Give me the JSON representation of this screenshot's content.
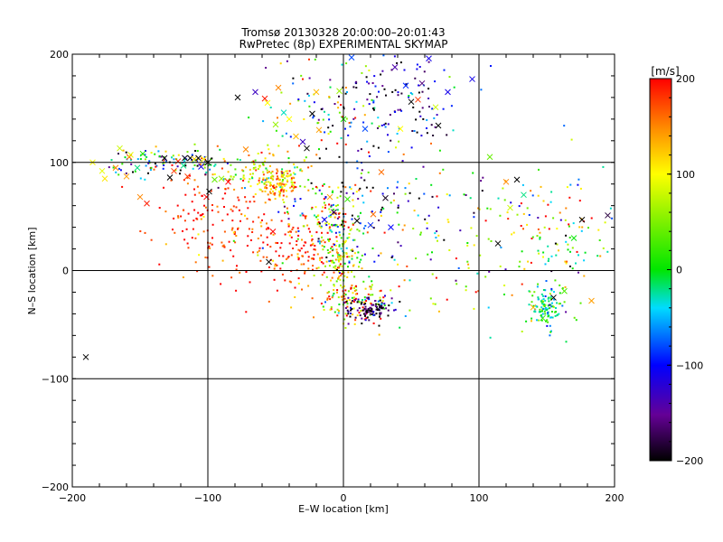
{
  "chart_data": {
    "type": "scatter",
    "title": "Tromsø 20130328 20:00:00–20:01:43",
    "subtitle": "RwPretec (8p) EXPERIMENTAL SKYMAP",
    "xlabel": "E–W location [km]",
    "ylabel": "N–S location [km]",
    "xlim": [
      -200,
      200
    ],
    "ylim": [
      -200,
      200
    ],
    "xticks": [
      -200,
      -100,
      0,
      100,
      200
    ],
    "yticks": [
      -200,
      -100,
      0,
      100,
      200
    ],
    "grid": true,
    "colorbar": {
      "label": "[m/s]",
      "range": [
        -200,
        200
      ],
      "ticks": [
        -200,
        -100,
        0,
        100,
        200
      ],
      "colormap": "black-purple-blue-cyan-green-yellow-orange-red"
    },
    "point_clusters": [
      {
        "center": [
          -48,
          80
        ],
        "spread": [
          8,
          8
        ],
        "velocity": 130,
        "velocity_spread": 40
      },
      {
        "center": [
          -60,
          92
        ],
        "spread": [
          20,
          10
        ],
        "velocity": 80,
        "velocity_spread": 60
      },
      {
        "center": [
          -100,
          45
        ],
        "spread": [
          22,
          22
        ],
        "velocity": 190,
        "velocity_spread": 25
      },
      {
        "center": [
          -55,
          40
        ],
        "spread": [
          25,
          25
        ],
        "velocity": 170,
        "velocity_spread": 40
      },
      {
        "center": [
          -30,
          10
        ],
        "spread": [
          20,
          25
        ],
        "velocity": 185,
        "velocity_spread": 30
      },
      {
        "center": [
          -2,
          10
        ],
        "spread": [
          8,
          15
        ],
        "velocity": 60,
        "velocity_spread": 60
      },
      {
        "center": [
          10,
          -30
        ],
        "spread": [
          15,
          12
        ],
        "velocity": 140,
        "velocity_spread": 80
      },
      {
        "center": [
          20,
          -35
        ],
        "spread": [
          8,
          6
        ],
        "velocity": -170,
        "velocity_spread": 40
      },
      {
        "center": [
          -10,
          50
        ],
        "spread": [
          15,
          15
        ],
        "velocity": 20,
        "velocity_spread": 120
      },
      {
        "center": [
          20,
          60
        ],
        "spread": [
          30,
          30
        ],
        "velocity": -60,
        "velocity_spread": 140
      },
      {
        "center": [
          -10,
          150
        ],
        "spread": [
          20,
          35
        ],
        "velocity": -20,
        "velocity_spread": 120
      },
      {
        "center": [
          40,
          160
        ],
        "spread": [
          25,
          25
        ],
        "velocity": -130,
        "velocity_spread": 70
      },
      {
        "center": [
          -130,
          100
        ],
        "spread": [
          25,
          6
        ],
        "velocity": -20,
        "velocity_spread": 130
      },
      {
        "center": [
          90,
          30
        ],
        "spread": [
          40,
          40
        ],
        "velocity": 30,
        "velocity_spread": 120
      },
      {
        "center": [
          150,
          -35
        ],
        "spread": [
          6,
          10
        ],
        "velocity": -20,
        "velocity_spread": 40
      },
      {
        "center": [
          160,
          30
        ],
        "spread": [
          20,
          30
        ],
        "velocity": 60,
        "velocity_spread": 120
      }
    ],
    "cross_markers": [
      [
        -190,
        -80,
        -210
      ],
      [
        -185,
        100,
        100
      ],
      [
        -178,
        92,
        90
      ],
      [
        -176,
        85,
        110
      ],
      [
        -168,
        95,
        150
      ],
      [
        -165,
        113,
        80
      ],
      [
        -160,
        87,
        140
      ],
      [
        -158,
        105,
        170
      ],
      [
        -157,
        107,
        90
      ],
      [
        -152,
        95,
        -20
      ],
      [
        -150,
        68,
        150
      ],
      [
        -148,
        108,
        10
      ],
      [
        -145,
        62,
        190
      ],
      [
        -132,
        104,
        -190
      ],
      [
        -128,
        86,
        -200
      ],
      [
        -125,
        92,
        180
      ],
      [
        -122,
        101,
        190
      ],
      [
        -118,
        97,
        -20
      ],
      [
        -117,
        104,
        -190
      ],
      [
        -115,
        87,
        180
      ],
      [
        -113,
        104,
        -200
      ],
      [
        -110,
        103,
        120
      ],
      [
        -107,
        104,
        -200
      ],
      [
        -105,
        96,
        -110
      ],
      [
        -103,
        103,
        100
      ],
      [
        -101,
        68,
        200
      ],
      [
        -100,
        100,
        -200
      ],
      [
        -99,
        73,
        -200
      ],
      [
        -95,
        84,
        40
      ],
      [
        -90,
        85,
        60
      ],
      [
        -85,
        82,
        200
      ],
      [
        -78,
        160,
        -200
      ],
      [
        -72,
        112,
        150
      ],
      [
        -65,
        165,
        -130
      ],
      [
        -58,
        159,
        190
      ],
      [
        -56,
        155,
        100
      ],
      [
        -55,
        8,
        -200
      ],
      [
        -52,
        36,
        200
      ],
      [
        -50,
        135,
        60
      ],
      [
        -48,
        169,
        150
      ],
      [
        -44,
        146,
        -30
      ],
      [
        -40,
        140,
        100
      ],
      [
        -35,
        124,
        130
      ],
      [
        -30,
        119,
        -130
      ],
      [
        -27,
        113,
        -200
      ],
      [
        -23,
        145,
        -200
      ],
      [
        -20,
        165,
        130
      ],
      [
        -18,
        130,
        140
      ],
      [
        -14,
        47,
        -110
      ],
      [
        -10,
        68,
        140
      ],
      [
        -7,
        54,
        -180
      ],
      [
        -3,
        166,
        60
      ],
      [
        0,
        140,
        10
      ],
      [
        3,
        66,
        20
      ],
      [
        6,
        197,
        -80
      ],
      [
        10,
        46,
        -200
      ],
      [
        16,
        131,
        -80
      ],
      [
        20,
        42,
        -90
      ],
      [
        22,
        52,
        160
      ],
      [
        28,
        91,
        160
      ],
      [
        31,
        67,
        -190
      ],
      [
        35,
        40,
        -100
      ],
      [
        38,
        188,
        -140
      ],
      [
        42,
        131,
        100
      ],
      [
        46,
        171,
        -90
      ],
      [
        50,
        156,
        -200
      ],
      [
        55,
        158,
        180
      ],
      [
        58,
        173,
        -160
      ],
      [
        63,
        196,
        -110
      ],
      [
        68,
        151,
        80
      ],
      [
        70,
        134,
        -200
      ],
      [
        77,
        165,
        -110
      ],
      [
        95,
        177,
        -110
      ],
      [
        108,
        105,
        40
      ],
      [
        114,
        25,
        -200
      ],
      [
        120,
        82,
        150
      ],
      [
        123,
        58,
        80
      ],
      [
        128,
        84,
        -200
      ],
      [
        133,
        70,
        -20
      ],
      [
        140,
        -34,
        130
      ],
      [
        147,
        -44,
        20
      ],
      [
        155,
        -25,
        -200
      ],
      [
        163,
        -19,
        30
      ],
      [
        170,
        30,
        0
      ],
      [
        176,
        47,
        -200
      ],
      [
        183,
        -28,
        140
      ],
      [
        195,
        51,
        -180
      ]
    ]
  }
}
